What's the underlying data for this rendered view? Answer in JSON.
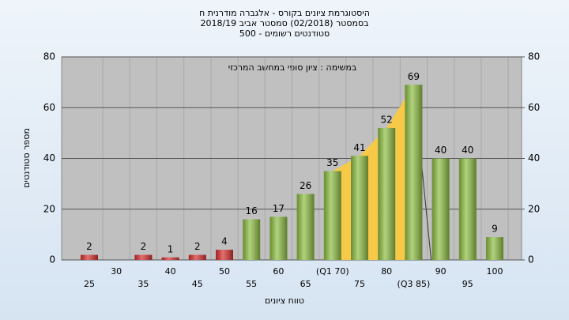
{
  "chart_data": {
    "type": "bar",
    "title": "היסטוגרמת ציונים בקורס - אלגברה מודרנית ח",
    "subtitle": "בסמסטר  (02/2018)  סמסטר אביב 2018/19",
    "subtitle2": "סטודנטים רשומים - 500",
    "annotation": "במשימה : ציון סופי במחשב המרכזי",
    "y_label": "מספר סטודנטים",
    "x_label": "טווח ציונים",
    "categories": [
      "25",
      "30",
      "35",
      "40",
      "45",
      "50",
      "55",
      "60",
      "65",
      "(Q1 70)",
      "75",
      "80",
      "(Q3 85)",
      "90",
      "95",
      "100"
    ],
    "values": [
      2,
      0,
      2,
      1,
      2,
      4,
      16,
      17,
      26,
      35,
      41,
      52,
      69,
      40,
      40,
      9
    ],
    "colors": [
      "#d93030",
      "#d93030",
      "#d93030",
      "#d93030",
      "#d93030",
      "#d93030",
      "#8fbf45",
      "#8fbf45",
      "#8fbf45",
      "#8fbf45",
      "#8fbf45",
      "#8fbf45",
      "#8fbf45",
      "#8fbf45",
      "#8fbf45",
      "#8fbf45"
    ],
    "highlight_color": "#f7c948",
    "ylim": [
      0,
      80
    ],
    "yticks": [
      0,
      20,
      40,
      60,
      80
    ],
    "y2lim": [
      0,
      80
    ],
    "y2ticks": [
      0,
      20,
      40,
      60,
      80
    ],
    "grid": true
  }
}
